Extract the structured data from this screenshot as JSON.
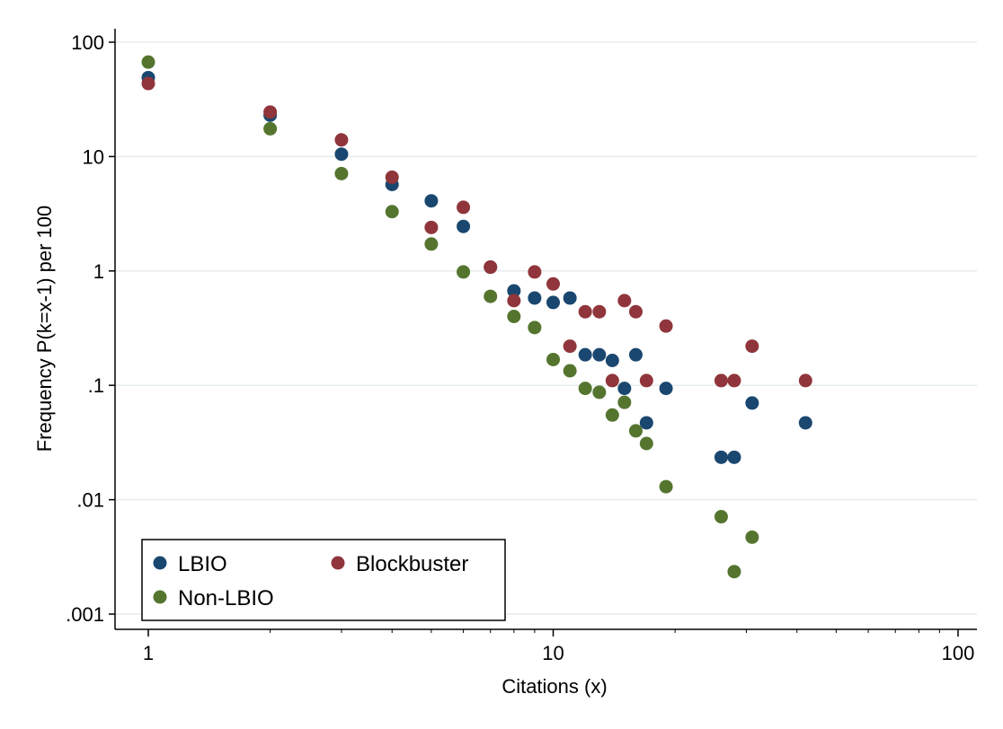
{
  "chart_data": {
    "type": "scatter",
    "title": "",
    "xlabel": "Citations (x)",
    "ylabel": "Frequency P(k=x-1) per 100",
    "xscale": "log",
    "yscale": "log",
    "xlim": [
      1,
      100
    ],
    "ylim": [
      0.001,
      100
    ],
    "grid": "horizontal",
    "legend_position": "bottom-left",
    "x_ticks": [
      {
        "value": 1,
        "label": "1"
      },
      {
        "value": 10,
        "label": "10"
      },
      {
        "value": 100,
        "label": "100"
      }
    ],
    "y_ticks": [
      {
        "value": 100,
        "label": "100"
      },
      {
        "value": 10,
        "label": "10"
      },
      {
        "value": 1,
        "label": "1"
      },
      {
        "value": 0.1,
        "label": ".1"
      },
      {
        "value": 0.01,
        "label": ".01"
      },
      {
        "value": 0.001,
        "label": ".001"
      }
    ],
    "series": [
      {
        "name": "LBIO",
        "color": "#1a476f",
        "points": [
          [
            1,
            49
          ],
          [
            2,
            23
          ],
          [
            3,
            10.5
          ],
          [
            4,
            5.7
          ],
          [
            5,
            4.1
          ],
          [
            6,
            2.45
          ],
          [
            7,
            1.08
          ],
          [
            8,
            0.67
          ],
          [
            9,
            0.58
          ],
          [
            10,
            0.53
          ],
          [
            11,
            0.58
          ],
          [
            12,
            0.185
          ],
          [
            13,
            0.185
          ],
          [
            14,
            0.165
          ],
          [
            15,
            0.094
          ],
          [
            16,
            0.185
          ],
          [
            17,
            0.047
          ],
          [
            19,
            0.094
          ],
          [
            26,
            0.0235
          ],
          [
            28,
            0.0235
          ],
          [
            31,
            0.07
          ],
          [
            42,
            0.047
          ]
        ]
      },
      {
        "name": "Blockbuster",
        "color": "#90353b",
        "points": [
          [
            1,
            43.5
          ],
          [
            2,
            24.5
          ],
          [
            3,
            14
          ],
          [
            4,
            6.6
          ],
          [
            5,
            2.4
          ],
          [
            6,
            3.6
          ],
          [
            7,
            1.08
          ],
          [
            8,
            0.55
          ],
          [
            9,
            0.98
          ],
          [
            10,
            0.77
          ],
          [
            11,
            0.22
          ],
          [
            12,
            0.44
          ],
          [
            13,
            0.44
          ],
          [
            14,
            0.11
          ],
          [
            15,
            0.55
          ],
          [
            16,
            0.44
          ],
          [
            17,
            0.11
          ],
          [
            19,
            0.33
          ],
          [
            26,
            0.11
          ],
          [
            28,
            0.11
          ],
          [
            31,
            0.22
          ],
          [
            42,
            0.11
          ]
        ]
      },
      {
        "name": "Non-LBIO",
        "color": "#55752f",
        "points": [
          [
            1,
            67
          ],
          [
            2,
            17.5
          ],
          [
            3,
            7.1
          ],
          [
            4,
            3.3
          ],
          [
            5,
            1.72
          ],
          [
            6,
            0.98
          ],
          [
            7,
            0.6
          ],
          [
            8,
            0.4
          ],
          [
            9,
            0.32
          ],
          [
            10,
            0.168
          ],
          [
            11,
            0.134
          ],
          [
            12,
            0.094
          ],
          [
            13,
            0.087
          ],
          [
            14,
            0.055
          ],
          [
            15,
            0.071
          ],
          [
            16,
            0.04
          ],
          [
            17,
            0.031
          ],
          [
            19,
            0.013
          ],
          [
            26,
            0.0071
          ],
          [
            28,
            0.00235
          ],
          [
            31,
            0.0047
          ]
        ]
      }
    ],
    "legend": [
      {
        "label": "LBIO",
        "series": 0
      },
      {
        "label": "Blockbuster",
        "series": 1
      },
      {
        "label": "Non-LBIO",
        "series": 2
      }
    ]
  }
}
